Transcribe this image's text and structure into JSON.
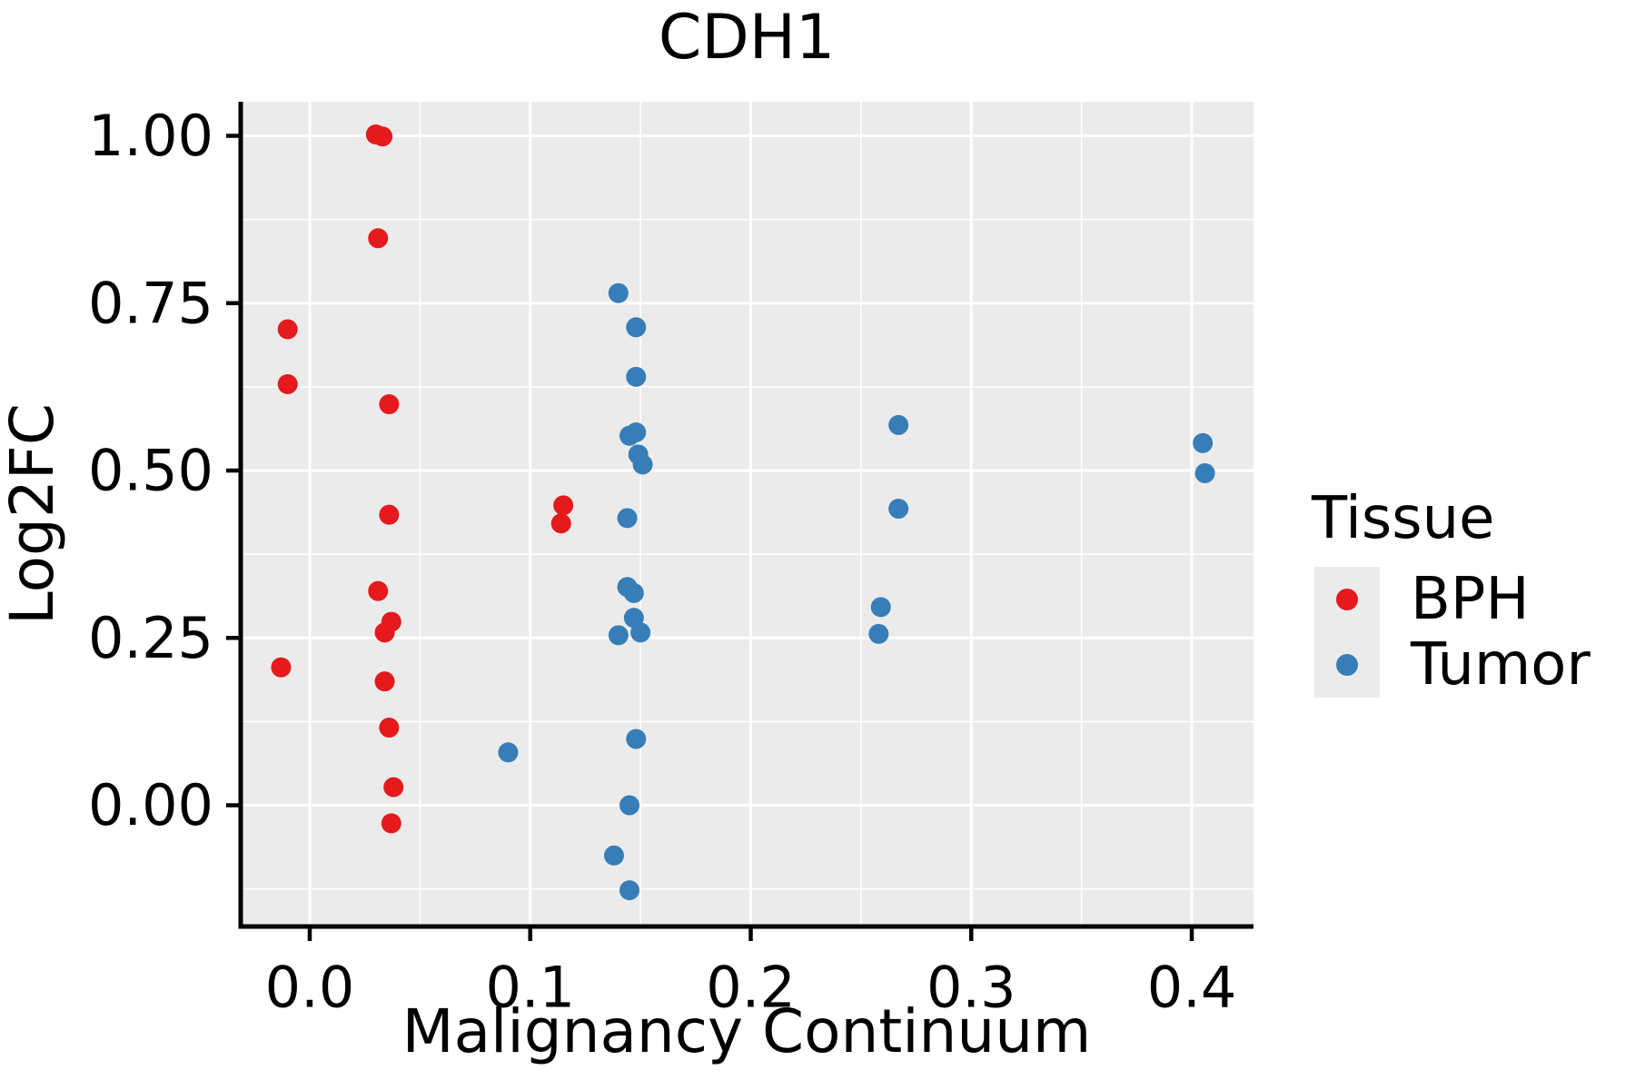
{
  "chart_data": {
    "type": "scatter",
    "title": "CDH1",
    "xlabel": "Malignancy Continuum",
    "ylabel": "Log2FC",
    "x_ticks": {
      "values": [
        0.0,
        0.1,
        0.2,
        0.3,
        0.4
      ],
      "labels": [
        "0.0",
        "0.1",
        "0.2",
        "0.3",
        "0.4"
      ]
    },
    "y_ticks": {
      "values": [
        0.0,
        0.25,
        0.5,
        0.75,
        1.0
      ],
      "labels": [
        "0.00",
        "0.25",
        "0.50",
        "0.75",
        "1.00"
      ]
    },
    "xlim": [
      -0.0313,
      0.428
    ],
    "ylim": [
      -0.1811,
      1.0509
    ],
    "grid": {
      "on": true,
      "panel_color": "#ebebeb",
      "major_color": "#ffffff",
      "minor_color": "#ffffff"
    },
    "marker_radius": 11,
    "legend": {
      "title": "Tissue",
      "position": "right",
      "key_background": "#ebebeb",
      "items": [
        {
          "label": "BPH",
          "color": "#e41a1c"
        },
        {
          "label": "Tumor",
          "color": "#377eb8"
        }
      ]
    },
    "series": [
      {
        "name": "BPH",
        "color": "#e41a1c",
        "points": [
          [
            -0.01,
            0.711
          ],
          [
            -0.01,
            0.629
          ],
          [
            -0.013,
            0.206
          ],
          [
            0.03,
            1.002
          ],
          [
            0.033,
            0.999
          ],
          [
            0.031,
            0.847
          ],
          [
            0.036,
            0.599
          ],
          [
            0.036,
            0.434
          ],
          [
            0.031,
            0.32
          ],
          [
            0.037,
            0.274
          ],
          [
            0.034,
            0.258
          ],
          [
            0.034,
            0.185
          ],
          [
            0.036,
            0.116
          ],
          [
            0.038,
            0.027
          ],
          [
            0.037,
            -0.027
          ],
          [
            0.115,
            0.448
          ],
          [
            0.114,
            0.421
          ]
        ]
      },
      {
        "name": "Tumor",
        "color": "#377eb8",
        "points": [
          [
            0.09,
            0.079
          ],
          [
            0.14,
            0.765
          ],
          [
            0.148,
            0.714
          ],
          [
            0.148,
            0.64
          ],
          [
            0.145,
            0.552
          ],
          [
            0.148,
            0.557
          ],
          [
            0.149,
            0.524
          ],
          [
            0.151,
            0.509
          ],
          [
            0.144,
            0.429
          ],
          [
            0.144,
            0.326
          ],
          [
            0.147,
            0.317
          ],
          [
            0.147,
            0.28
          ],
          [
            0.14,
            0.254
          ],
          [
            0.15,
            0.258
          ],
          [
            0.148,
            0.099
          ],
          [
            0.145,
            0.0
          ],
          [
            0.138,
            -0.075
          ],
          [
            0.145,
            -0.127
          ],
          [
            0.259,
            0.296
          ],
          [
            0.258,
            0.256
          ],
          [
            0.267,
            0.568
          ],
          [
            0.267,
            0.443
          ],
          [
            0.405,
            0.541
          ],
          [
            0.406,
            0.496
          ]
        ]
      }
    ]
  }
}
